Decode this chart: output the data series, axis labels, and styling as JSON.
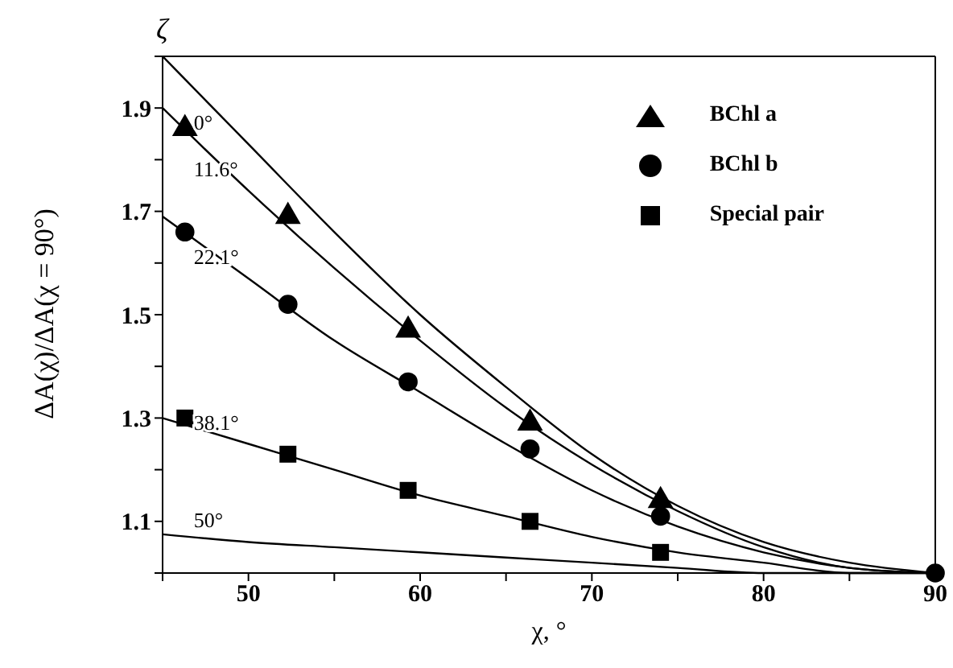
{
  "chart_data": {
    "type": "line",
    "xlabel": "χ, °",
    "ylabel": "ΔA(χ)/ΔA(χ = 90°)",
    "annotations": [
      "ζ"
    ],
    "xlim": [
      45,
      90
    ],
    "ylim": [
      1,
      2
    ],
    "xticks": [
      {
        "value": 45,
        "label": null
      },
      50,
      {
        "value": 55,
        "label": null
      },
      60,
      {
        "value": 65,
        "label": null
      },
      70,
      {
        "value": 75,
        "label": null
      },
      80,
      {
        "value": 85,
        "label": null
      },
      90
    ],
    "yticks": [
      {
        "value": 1.0,
        "label": null
      },
      1.1,
      {
        "value": 1.2,
        "label": null
      },
      1.3,
      {
        "value": 1.4,
        "label": null
      },
      1.5,
      {
        "value": 1.6,
        "label": null
      },
      1.7,
      {
        "value": 1.8,
        "label": null
      },
      1.9,
      {
        "value": 2.0,
        "label": null
      }
    ],
    "grid": false,
    "legend": "top right",
    "line_style": "solid",
    "x": [
      45,
      50,
      55,
      60,
      65,
      70,
      75,
      80,
      85,
      90
    ],
    "series": [
      {
        "name": "0°",
        "marker": "none",
        "color": "#000000",
        "values": [
          2.0,
          1.83,
          1.66,
          1.5,
          1.36,
          1.23,
          1.13,
          1.06,
          1.02,
          1.0
        ]
      },
      {
        "name": "11.6°",
        "marker": "none",
        "color": "#000000",
        "values": [
          1.9,
          1.74,
          1.59,
          1.45,
          1.32,
          1.21,
          1.12,
          1.05,
          1.01,
          1.0
        ]
      },
      {
        "name": "22.1°",
        "marker": "none",
        "color": "#000000",
        "values": [
          1.69,
          1.57,
          1.45,
          1.35,
          1.25,
          1.16,
          1.09,
          1.04,
          1.01,
          1.0
        ]
      },
      {
        "name": "38.1°",
        "marker": "none",
        "color": "#000000",
        "values": [
          1.3,
          1.25,
          1.2,
          1.15,
          1.11,
          1.07,
          1.04,
          1.02,
          1.0,
          1.0
        ]
      },
      {
        "name": "50°",
        "marker": "none",
        "color": "#000000",
        "values": [
          1.075,
          1.06,
          1.05,
          1.04,
          1.03,
          1.02,
          1.01,
          1.0,
          1.0,
          1.0
        ]
      },
      {
        "name": "BChl a",
        "type": "scatter",
        "marker": "triangle",
        "color": "#000000",
        "x": [
          46.3,
          52.3,
          59.3,
          66.4,
          74
        ],
        "values": [
          1.86,
          1.69,
          1.47,
          1.29,
          1.14
        ]
      },
      {
        "name": "BChl b",
        "type": "scatter",
        "marker": "circle",
        "color": "#000000",
        "x": [
          46.3,
          52.3,
          59.3,
          66.4,
          74,
          90
        ],
        "values": [
          1.66,
          1.52,
          1.37,
          1.24,
          1.11,
          1.0
        ]
      },
      {
        "name": "Special pair",
        "type": "scatter",
        "marker": "square",
        "color": "#000000",
        "x": [
          46.3,
          52.3,
          59.3,
          66.4,
          74
        ],
        "values": [
          1.3,
          1.23,
          1.16,
          1.1,
          1.04
        ]
      }
    ]
  }
}
